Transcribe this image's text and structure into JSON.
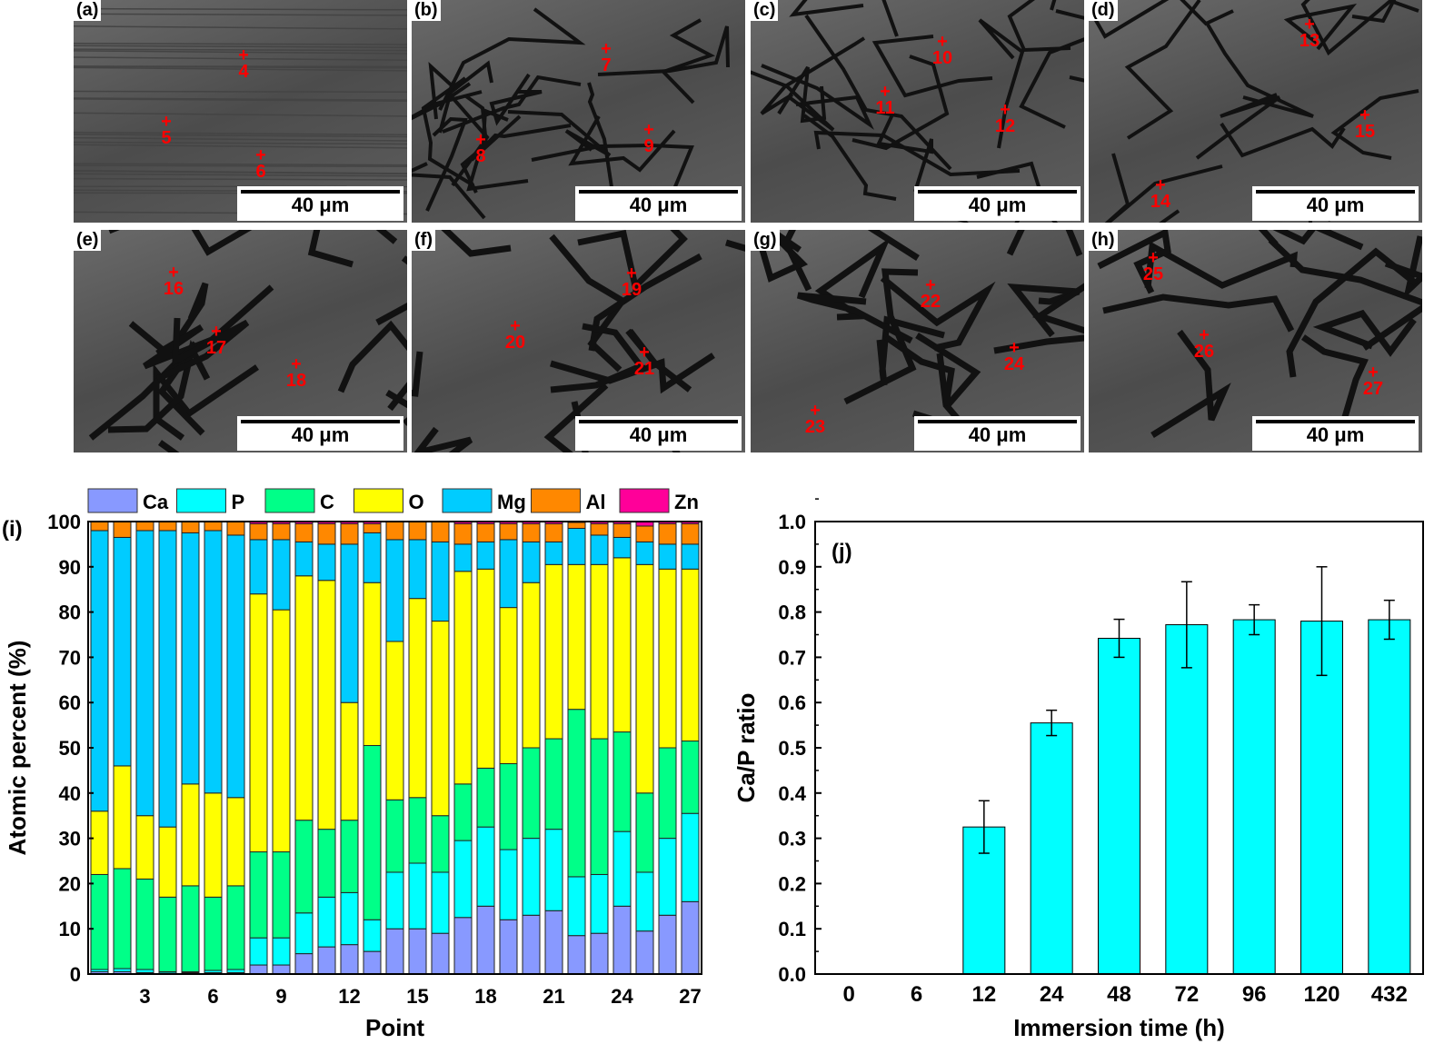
{
  "sem_panels": [
    {
      "label": "(a)",
      "scale": "40 μm",
      "points": [
        "4",
        "5",
        "6"
      ]
    },
    {
      "label": "(b)",
      "scale": "40 μm",
      "points": [
        "7",
        "8",
        "9"
      ]
    },
    {
      "label": "(c)",
      "scale": "40 μm",
      "points": [
        "10",
        "11",
        "12"
      ]
    },
    {
      "label": "(d)",
      "scale": "40 μm",
      "points": [
        "13",
        "14",
        "15"
      ]
    },
    {
      "label": "(e)",
      "scale": "40 μm",
      "points": [
        "16",
        "17",
        "18"
      ]
    },
    {
      "label": "(f)",
      "scale": "40 μm",
      "points": [
        "19",
        "20",
        "21"
      ]
    },
    {
      "label": "(g)",
      "scale": "40 μm",
      "points": [
        "22",
        "23",
        "24"
      ]
    },
    {
      "label": "(h)",
      "scale": "40 μm",
      "points": [
        "25",
        "26",
        "27"
      ]
    }
  ],
  "chart_data": [
    {
      "type": "bar",
      "stacked": true,
      "panel_label": "(i)",
      "xlabel": "Point",
      "ylabel": "Atomic percent (%)",
      "ylim": [
        0,
        100
      ],
      "yticks": [
        0,
        10,
        20,
        30,
        40,
        50,
        60,
        70,
        80,
        90,
        100
      ],
      "xticks": [
        "3",
        "6",
        "9",
        "12",
        "15",
        "18",
        "21",
        "24",
        "27"
      ],
      "categories": [
        "1",
        "2",
        "3",
        "4",
        "5",
        "6",
        "7",
        "8",
        "9",
        "10",
        "11",
        "12",
        "13",
        "14",
        "15",
        "16",
        "17",
        "18",
        "19",
        "20",
        "21",
        "22",
        "23",
        "24",
        "25",
        "26",
        "27"
      ],
      "legend_position": "top",
      "series": [
        {
          "name": "Ca",
          "color": "#8899ff",
          "values": [
            0.5,
            0.5,
            0.3,
            0.2,
            0.3,
            0.3,
            0.3,
            2,
            2,
            4.5,
            6,
            6.5,
            5,
            10,
            10,
            9,
            12.5,
            15,
            12,
            13,
            14,
            8.5,
            9,
            15,
            9.5,
            13,
            16
          ]
        },
        {
          "name": "P",
          "color": "#00ffff",
          "values": [
            0.5,
            0.7,
            0.7,
            0.3,
            0.2,
            0.5,
            0.7,
            6,
            6,
            9,
            11,
            11.5,
            7,
            12.5,
            14.5,
            13.5,
            17,
            17.5,
            15.5,
            17,
            18,
            13,
            13,
            16.5,
            13,
            17,
            19.5
          ]
        },
        {
          "name": "C",
          "color": "#00ff88",
          "values": [
            21,
            22.1,
            20,
            16.5,
            19,
            16.2,
            18.5,
            19,
            19,
            20.5,
            15,
            16,
            38.5,
            16,
            14.5,
            12.5,
            12.5,
            13,
            19,
            20,
            20,
            37,
            30,
            22,
            17.5,
            20,
            16
          ]
        },
        {
          "name": "O",
          "color": "#ffff00",
          "values": [
            14,
            22.7,
            14,
            15.5,
            22.5,
            23,
            19.5,
            57,
            53.5,
            54,
            55,
            26,
            36,
            35,
            44,
            43,
            47,
            44,
            34.5,
            36.5,
            38.5,
            32,
            38.5,
            38.5,
            50.5,
            39.5,
            38
          ]
        },
        {
          "name": "Mg",
          "color": "#00ccff",
          "values": [
            62,
            50.5,
            63,
            65.5,
            55.5,
            58,
            58,
            12,
            15.5,
            7.5,
            8,
            35,
            11,
            22.5,
            13,
            17.5,
            6,
            6,
            15,
            9,
            5,
            8,
            6.5,
            4.5,
            5,
            5.5,
            5.5
          ]
        },
        {
          "name": "Al",
          "color": "#ff8800",
          "values": [
            2,
            3.5,
            2,
            2,
            2.5,
            2,
            3,
            3.5,
            3.5,
            4,
            4.5,
            4.5,
            2,
            4,
            4,
            4.5,
            4.5,
            4,
            3.5,
            4,
            4,
            1.3,
            2.5,
            3,
            3.5,
            4.5,
            4.5
          ]
        },
        {
          "name": "Zn",
          "color": "#ff0099",
          "values": [
            0,
            0,
            0,
            0,
            0,
            0,
            0,
            0.5,
            0.5,
            0.5,
            0.5,
            0.5,
            0.5,
            0,
            0,
            0,
            0.5,
            0.5,
            0.5,
            0.5,
            0.5,
            0.2,
            0.5,
            0.5,
            1,
            0.5,
            0.5
          ]
        }
      ]
    },
    {
      "type": "bar",
      "panel_label": "(j)",
      "xlabel": "Immersion time (h)",
      "ylabel": "Ca/P ratio",
      "ylim": [
        0,
        1.0
      ],
      "yticks": [
        "0.0",
        "0.1",
        "0.2",
        "0.3",
        "0.4",
        "0.5",
        "0.6",
        "0.7",
        "0.8",
        "0.9",
        "1.0"
      ],
      "categories": [
        "0",
        "6",
        "12",
        "24",
        "48",
        "72",
        "96",
        "120",
        "432"
      ],
      "values": [
        0,
        0,
        0.325,
        0.555,
        0.742,
        0.772,
        0.783,
        0.78,
        0.783
      ],
      "errors": [
        0,
        0,
        0.058,
        0.028,
        0.042,
        0.095,
        0.033,
        0.12,
        0.043
      ],
      "color": "#00ffff"
    }
  ]
}
